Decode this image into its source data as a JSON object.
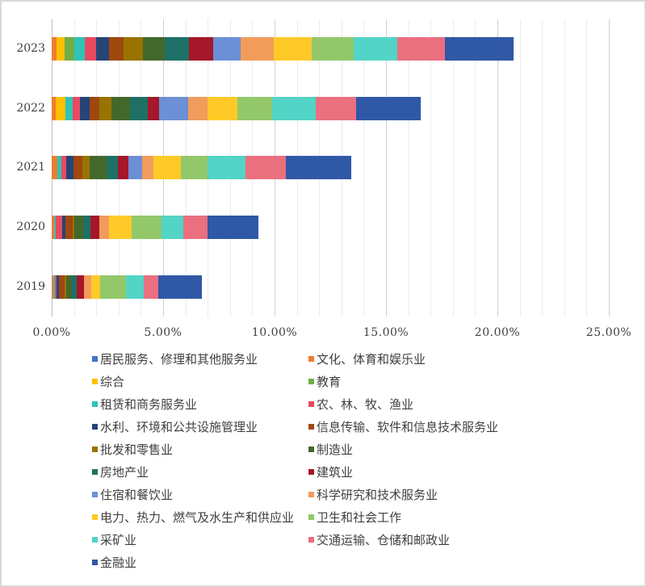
{
  "chart_data": {
    "type": "bar",
    "orientation": "horizontal",
    "stacked": true,
    "title": "",
    "xlabel": "",
    "ylabel": "",
    "xlim": [
      0,
      25
    ],
    "x_ticks": [
      "0.00%",
      "5.00%",
      "10.00%",
      "15.00%",
      "20.00%",
      "25.00%"
    ],
    "grid": true,
    "legend_position": "bottom",
    "categories": [
      "2023",
      "2022",
      "2021",
      "2020",
      "2019"
    ],
    "series": [
      {
        "name": "居民服务、修理和其他服务业",
        "color": "#4472C4",
        "values": [
          0,
          0,
          0,
          0,
          0
        ]
      },
      {
        "name": "文化、体育和娱乐业",
        "color": "#ED7D31",
        "values": [
          0.22,
          0.18,
          0.25,
          0.11,
          0.07
        ]
      },
      {
        "name": "综合",
        "color": "#FFC000",
        "values": [
          0.36,
          0.43,
          0,
          0,
          0
        ]
      },
      {
        "name": "教育",
        "color": "#70AD47",
        "values": [
          0.43,
          0,
          0,
          0,
          0
        ]
      },
      {
        "name": "租赁和商务服务业",
        "color": "#2EC4B6",
        "values": [
          0.47,
          0.33,
          0.18,
          0.07,
          0.07
        ]
      },
      {
        "name": "农、林、牧、渔业",
        "color": "#E84A5F",
        "values": [
          0.51,
          0.33,
          0.22,
          0.29,
          0.07
        ]
      },
      {
        "name": "水利、环境和公共设施管理业",
        "color": "#264478",
        "values": [
          0.58,
          0.43,
          0.33,
          0.14,
          0.11
        ]
      },
      {
        "name": "信息传输、软件和信息技术服务业",
        "color": "#9E480E",
        "values": [
          0.65,
          0.43,
          0.4,
          0.33,
          0.25
        ]
      },
      {
        "name": "批发和零售业",
        "color": "#997300",
        "values": [
          0.87,
          0.54,
          0.33,
          0.07,
          0.07
        ]
      },
      {
        "name": "制造业",
        "color": "#43682B",
        "values": [
          0.98,
          0.83,
          0.76,
          0.4,
          0.25
        ]
      },
      {
        "name": "房地产业",
        "color": "#1E7066",
        "values": [
          1.09,
          0.83,
          0.51,
          0.33,
          0.22
        ]
      },
      {
        "name": "建筑业",
        "color": "#A5172A",
        "values": [
          1.09,
          0.51,
          0.47,
          0.4,
          0.33
        ]
      },
      {
        "name": "住宿和餐饮业",
        "color": "#6D8FD6",
        "values": [
          1.23,
          1.27,
          0.62,
          0,
          0
        ]
      },
      {
        "name": "科学研究和技术服务业",
        "color": "#F29C5C",
        "values": [
          1.49,
          0.87,
          0.51,
          0.43,
          0.33
        ]
      },
      {
        "name": "电力、热力、燃气及水生产和供应业",
        "color": "#FFCA28",
        "values": [
          1.7,
          1.34,
          1.23,
          1.01,
          0.4
        ]
      },
      {
        "name": "卫生和社会工作",
        "color": "#92C86A",
        "values": [
          1.88,
          1.59,
          1.2,
          1.34,
          1.16
        ]
      },
      {
        "name": "采矿业",
        "color": "#52D4C6",
        "values": [
          1.96,
          1.96,
          1.7,
          0.98,
          0.8
        ]
      },
      {
        "name": "交通运输、仓储和邮政业",
        "color": "#EA6F7F",
        "values": [
          2.14,
          1.78,
          1.81,
          1.09,
          0.65
        ]
      },
      {
        "name": "金融业",
        "color": "#2F58A6",
        "values": [
          3.08,
          2.93,
          2.93,
          2.28,
          1.96
        ]
      }
    ],
    "totals_approx": {
      "2023": 20.7,
      "2022": 16.6,
      "2021": 13.45,
      "2020": 9.27,
      "2019": 6.74
    }
  },
  "legend": [
    {
      "label": "居民服务、修理和其他服务业",
      "color": "#4472C4"
    },
    {
      "label": "文化、体育和娱乐业",
      "color": "#ED7D31"
    },
    {
      "label": "综合",
      "color": "#FFC000"
    },
    {
      "label": "教育",
      "color": "#70AD47"
    },
    {
      "label": "租赁和商务服务业",
      "color": "#2EC4B6"
    },
    {
      "label": "农、林、牧、渔业",
      "color": "#E84A5F"
    },
    {
      "label": "水利、环境和公共设施管理业",
      "color": "#264478"
    },
    {
      "label": "信息传输、软件和信息技术服务业",
      "color": "#9E480E"
    },
    {
      "label": "批发和零售业",
      "color": "#997300"
    },
    {
      "label": "制造业",
      "color": "#43682B"
    },
    {
      "label": "房地产业",
      "color": "#1E7066"
    },
    {
      "label": "建筑业",
      "color": "#A5172A"
    },
    {
      "label": "住宿和餐饮业",
      "color": "#6D8FD6"
    },
    {
      "label": "科学研究和技术服务业",
      "color": "#F29C5C"
    },
    {
      "label": "电力、热力、燃气及水生产和供应业",
      "color": "#FFCA28"
    },
    {
      "label": "卫生和社会工作",
      "color": "#92C86A"
    },
    {
      "label": "采矿业",
      "color": "#52D4C6"
    },
    {
      "label": "交通运输、仓储和邮政业",
      "color": "#EA6F7F"
    },
    {
      "label": "金融业",
      "color": "#2F58A6"
    }
  ]
}
